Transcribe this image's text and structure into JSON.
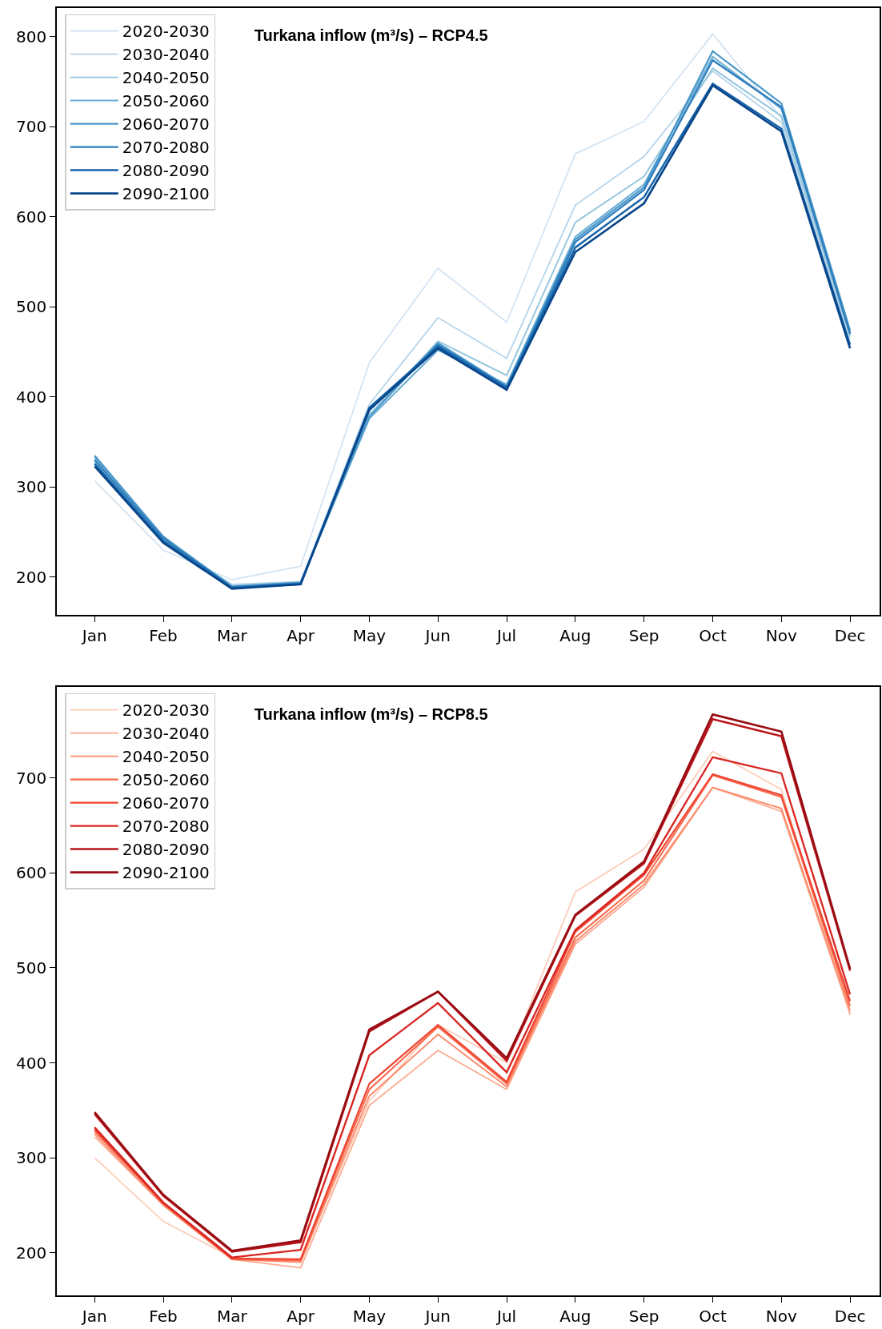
{
  "chart_data": [
    {
      "type": "line",
      "title": "Turkana inflow (m³/s) – RCP4.5",
      "categories": [
        "Jan",
        "Feb",
        "Mar",
        "Apr",
        "May",
        "Jun",
        "Jul",
        "Aug",
        "Sep",
        "Oct",
        "Nov",
        "Dec"
      ],
      "series": [
        {
          "name": "2020-2030",
          "color": "#cfe1f2",
          "values": [
            307,
            230,
            197,
            212,
            438,
            543,
            483,
            670,
            706,
            803,
            710,
            470
          ]
        },
        {
          "name": "2030-2040",
          "color": "#b5d4e9",
          "values": [
            328,
            240,
            192,
            195,
            392,
            488,
            443,
            613,
            667,
            762,
            705,
            465
          ]
        },
        {
          "name": "2040-2050",
          "color": "#93c4de",
          "values": [
            330,
            242,
            190,
            194,
            380,
            462,
            424,
            594,
            645,
            765,
            712,
            468
          ]
        },
        {
          "name": "2050-2060",
          "color": "#6aaed6",
          "values": [
            333,
            244,
            190,
            194,
            376,
            452,
            414,
            578,
            636,
            778,
            720,
            472
          ]
        },
        {
          "name": "2060-2070",
          "color": "#4a98c9",
          "values": [
            335,
            245,
            189,
            194,
            378,
            460,
            412,
            575,
            633,
            784,
            726,
            474
          ]
        },
        {
          "name": "2070-2080",
          "color": "#2e7ebc",
          "values": [
            330,
            243,
            189,
            193,
            385,
            458,
            411,
            572,
            630,
            774,
            722,
            470
          ]
        },
        {
          "name": "2080-2090",
          "color": "#1764ab",
          "values": [
            326,
            240,
            188,
            192,
            388,
            456,
            410,
            566,
            622,
            748,
            698,
            458
          ]
        },
        {
          "name": "2090-2100",
          "color": "#08468b",
          "values": [
            323,
            238,
            187,
            192,
            386,
            454,
            408,
            561,
            615,
            746,
            695,
            454
          ]
        }
      ],
      "ylim": [
        158,
        832
      ],
      "yticks": [
        200,
        300,
        400,
        500,
        600,
        700,
        800
      ],
      "grid": false,
      "legend": "top left",
      "marker": "none",
      "line_style": "solid"
    },
    {
      "type": "line",
      "title": "Turkana inflow (m³/s) – RCP8.5",
      "categories": [
        "Jan",
        "Feb",
        "Mar",
        "Apr",
        "May",
        "Jun",
        "Jul",
        "Aug",
        "Sep",
        "Oct",
        "Nov",
        "Dec"
      ],
      "series": [
        {
          "name": "2020-2030",
          "color": "#fdc9b4",
          "values": [
            300,
            233,
            195,
            190,
            360,
            440,
            400,
            580,
            625,
            728,
            688,
            450
          ]
        },
        {
          "name": "2030-2040",
          "color": "#fcaa8e",
          "values": [
            322,
            250,
            193,
            184,
            355,
            413,
            372,
            525,
            585,
            690,
            665,
            452
          ]
        },
        {
          "name": "2040-2050",
          "color": "#fc8a6a",
          "values": [
            325,
            250,
            193,
            190,
            365,
            430,
            375,
            528,
            588,
            690,
            668,
            455
          ]
        },
        {
          "name": "2050-2060",
          "color": "#f9694c",
          "values": [
            328,
            252,
            193,
            192,
            372,
            438,
            378,
            532,
            592,
            703,
            680,
            460
          ]
        },
        {
          "name": "2060-2070",
          "color": "#ef4533",
          "values": [
            330,
            252,
            194,
            193,
            378,
            440,
            380,
            538,
            598,
            704,
            682,
            465
          ]
        },
        {
          "name": "2070-2080",
          "color": "#d92723",
          "values": [
            332,
            253,
            195,
            203,
            408,
            463,
            390,
            540,
            600,
            722,
            705,
            472
          ]
        },
        {
          "name": "2080-2090",
          "color": "#bb151a",
          "values": [
            346,
            260,
            201,
            211,
            433,
            475,
            402,
            555,
            610,
            762,
            744,
            497
          ]
        },
        {
          "name": "2090-2100",
          "color": "#980c13",
          "values": [
            348,
            261,
            202,
            213,
            435,
            475,
            405,
            556,
            612,
            767,
            749,
            499
          ]
        }
      ],
      "ylim": [
        155,
        796
      ],
      "yticks": [
        200,
        300,
        400,
        500,
        600,
        700
      ],
      "grid": false,
      "legend": "top left",
      "marker": "none",
      "line_style": "solid"
    }
  ]
}
